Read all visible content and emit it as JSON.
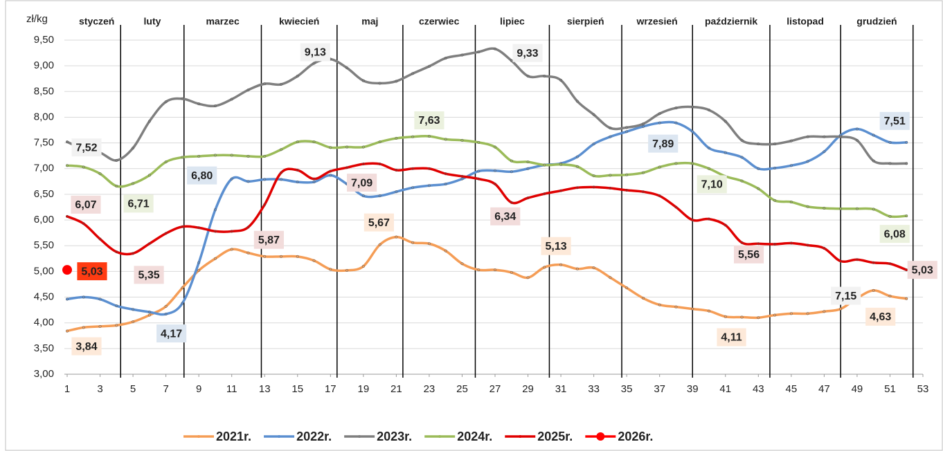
{
  "chart_data": {
    "type": "line",
    "y_label": "zł/kg",
    "months": [
      "styczeń",
      "luty",
      "marzec",
      "kwiecień",
      "maj",
      "czerwiec",
      "lipiec",
      "sierpień",
      "wrzesień",
      "październik",
      "listopad",
      "grudzień"
    ],
    "x": [
      1,
      2,
      3,
      4,
      5,
      6,
      7,
      8,
      9,
      10,
      11,
      12,
      13,
      14,
      15,
      16,
      17,
      18,
      19,
      20,
      21,
      22,
      23,
      24,
      25,
      26,
      27,
      28,
      29,
      30,
      31,
      32,
      33,
      34,
      35,
      36,
      37,
      38,
      39,
      40,
      41,
      42,
      43,
      44,
      45,
      46,
      47,
      48,
      49,
      50,
      51,
      52
    ],
    "xlim": [
      1,
      53
    ],
    "xticks": [
      1,
      3,
      5,
      7,
      9,
      11,
      13,
      15,
      17,
      19,
      21,
      23,
      25,
      27,
      29,
      31,
      33,
      35,
      37,
      39,
      41,
      43,
      45,
      47,
      49,
      51,
      53
    ],
    "ylim": [
      3,
      9.5
    ],
    "yticks": [
      {
        "value": 3,
        "label": "3,00"
      },
      {
        "value": 3.5,
        "label": "3,50"
      },
      {
        "value": 4,
        "label": "4,00"
      },
      {
        "value": 4.5,
        "label": "4,50"
      },
      {
        "value": 5,
        "label": "5,00"
      },
      {
        "value": 5.5,
        "label": "5,50"
      },
      {
        "value": 6,
        "label": "6,00"
      },
      {
        "value": 6.5,
        "label": "6,50"
      },
      {
        "value": 7,
        "label": "7,00"
      },
      {
        "value": 7.5,
        "label": "7,50"
      },
      {
        "value": 8,
        "label": "8,00"
      },
      {
        "value": 8.5,
        "label": "8,50"
      },
      {
        "value": 9,
        "label": "9,00"
      },
      {
        "value": 9.5,
        "label": "9,50"
      }
    ],
    "legend": "bottom",
    "series": [
      {
        "name": "2021r.",
        "color": "#f59d56",
        "label_fill": "#fde9d9",
        "values": [
          3.84,
          3.91,
          3.93,
          3.95,
          4.02,
          4.15,
          4.32,
          4.68,
          5.02,
          5.25,
          5.43,
          5.36,
          5.29,
          5.29,
          5.29,
          5.21,
          5.04,
          5.02,
          5.1,
          5.52,
          5.67,
          5.56,
          5.54,
          5.4,
          5.15,
          5.03,
          5.03,
          4.98,
          4.88,
          5.08,
          5.13,
          5.05,
          5.07,
          4.88,
          4.68,
          4.48,
          4.35,
          4.31,
          4.27,
          4.23,
          4.12,
          4.11,
          4.1,
          4.15,
          4.18,
          4.18,
          4.22,
          4.27,
          4.48,
          4.63,
          4.52,
          4.47
        ],
        "value_labels": [
          "3,84",
          null,
          null,
          null,
          null,
          null,
          null,
          null,
          null,
          null,
          null,
          null,
          null,
          null,
          null,
          null,
          null,
          null,
          null,
          null,
          "5,67",
          null,
          null,
          null,
          null,
          null,
          null,
          null,
          null,
          null,
          "5,13",
          null,
          null,
          null,
          null,
          null,
          null,
          null,
          null,
          null,
          null,
          "4,11",
          null,
          null,
          null,
          null,
          null,
          null,
          null,
          "4,63",
          null,
          null
        ]
      },
      {
        "name": "2022r.",
        "color": "#5b8fd0",
        "label_fill": "#dce6f1",
        "values": [
          4.46,
          4.5,
          4.46,
          4.33,
          4.26,
          4.21,
          4.17,
          4.38,
          5.17,
          6.2,
          6.8,
          6.75,
          6.79,
          6.79,
          6.74,
          6.74,
          6.87,
          6.7,
          6.47,
          6.47,
          6.55,
          6.63,
          6.67,
          6.7,
          6.8,
          6.95,
          6.96,
          6.94,
          7.0,
          7.07,
          7.1,
          7.23,
          7.48,
          7.62,
          7.72,
          7.82,
          7.89,
          7.89,
          7.72,
          7.4,
          7.31,
          7.22,
          7.0,
          7.01,
          7.06,
          7.14,
          7.33,
          7.65,
          7.77,
          7.65,
          7.51,
          7.51
        ],
        "value_labels": [
          null,
          null,
          null,
          null,
          null,
          null,
          "4,17",
          null,
          null,
          null,
          "6,80",
          null,
          null,
          null,
          null,
          null,
          null,
          null,
          null,
          null,
          null,
          null,
          null,
          null,
          null,
          null,
          null,
          null,
          null,
          null,
          null,
          null,
          null,
          null,
          null,
          null,
          "7,89",
          null,
          null,
          null,
          null,
          null,
          null,
          null,
          null,
          null,
          null,
          null,
          null,
          null,
          null,
          "7,51"
        ]
      },
      {
        "name": "2023r.",
        "color": "#7f7f7f",
        "label_fill": "#f2f2f2",
        "values": [
          7.52,
          7.38,
          7.31,
          7.16,
          7.4,
          7.92,
          8.3,
          8.36,
          8.26,
          8.22,
          8.35,
          8.53,
          8.65,
          8.64,
          8.8,
          9.05,
          9.13,
          8.96,
          8.71,
          8.66,
          8.7,
          8.85,
          8.99,
          9.15,
          9.21,
          9.27,
          9.33,
          9.1,
          8.8,
          8.8,
          8.72,
          8.31,
          8.05,
          7.79,
          7.8,
          7.87,
          8.07,
          8.18,
          8.2,
          8.14,
          7.92,
          7.55,
          7.48,
          7.48,
          7.54,
          7.62,
          7.62,
          7.62,
          7.55,
          7.15,
          7.1,
          7.1
        ],
        "value_labels": [
          "7,52",
          null,
          null,
          null,
          null,
          null,
          null,
          null,
          null,
          null,
          null,
          null,
          null,
          null,
          null,
          null,
          "9,13",
          null,
          null,
          null,
          null,
          null,
          null,
          null,
          null,
          null,
          "9,33",
          null,
          null,
          null,
          null,
          null,
          null,
          null,
          null,
          null,
          null,
          null,
          null,
          null,
          null,
          null,
          null,
          null,
          null,
          null,
          null,
          null,
          null,
          "7,15",
          null,
          null
        ]
      },
      {
        "name": "2024r.",
        "color": "#9bbb59",
        "label_fill": "#ebf1de",
        "values": [
          7.06,
          7.03,
          6.9,
          6.66,
          6.71,
          6.87,
          7.13,
          7.22,
          7.24,
          7.26,
          7.26,
          7.24,
          7.24,
          7.37,
          7.52,
          7.52,
          7.41,
          7.42,
          7.42,
          7.52,
          7.59,
          7.62,
          7.63,
          7.57,
          7.55,
          7.51,
          7.42,
          7.15,
          7.13,
          7.07,
          7.08,
          7.04,
          6.86,
          6.87,
          6.88,
          6.92,
          7.03,
          7.1,
          7.1,
          7.0,
          6.85,
          6.76,
          6.61,
          6.38,
          6.35,
          6.26,
          6.23,
          6.22,
          6.22,
          6.21,
          6.07,
          6.08
        ],
        "value_labels": [
          null,
          null,
          null,
          null,
          "6,71",
          null,
          null,
          null,
          null,
          null,
          null,
          null,
          null,
          null,
          null,
          null,
          null,
          null,
          null,
          null,
          null,
          null,
          "7,63",
          null,
          null,
          null,
          null,
          null,
          null,
          null,
          null,
          null,
          null,
          null,
          null,
          null,
          null,
          null,
          "7,10",
          null,
          null,
          null,
          null,
          null,
          null,
          null,
          null,
          null,
          null,
          null,
          null,
          "6,08"
        ]
      },
      {
        "name": "2025r.",
        "color": "#e00000",
        "label_fill": "#f2dcdb",
        "values": [
          6.07,
          5.93,
          5.63,
          5.38,
          5.35,
          5.54,
          5.74,
          5.87,
          5.85,
          5.78,
          5.78,
          5.86,
          6.3,
          6.92,
          6.97,
          6.8,
          6.95,
          7.02,
          7.09,
          7.09,
          6.97,
          7.0,
          7.0,
          6.9,
          6.85,
          6.8,
          6.7,
          6.34,
          6.43,
          6.51,
          6.57,
          6.63,
          6.64,
          6.62,
          6.58,
          6.55,
          6.47,
          6.25,
          6.0,
          6.02,
          5.9,
          5.56,
          5.54,
          5.53,
          5.55,
          5.51,
          5.45,
          5.2,
          5.23,
          5.17,
          5.15,
          5.03
        ],
        "value_labels": [
          "6,07",
          null,
          null,
          null,
          "5,35",
          null,
          null,
          "5,87",
          null,
          null,
          null,
          null,
          null,
          null,
          null,
          null,
          null,
          null,
          null,
          "7,09",
          null,
          null,
          null,
          null,
          null,
          null,
          null,
          "6,34",
          null,
          null,
          null,
          null,
          null,
          null,
          null,
          null,
          null,
          null,
          null,
          null,
          null,
          "5,56",
          null,
          null,
          null,
          null,
          null,
          null,
          null,
          null,
          null,
          "5,03"
        ]
      },
      {
        "name": "2026r.",
        "color": "#ff0000",
        "label_fill": "#ff3b12",
        "marker": "circle",
        "values": [
          5.03,
          null,
          null,
          null,
          null,
          null,
          null,
          null,
          null,
          null,
          null,
          null,
          null,
          null,
          null,
          null,
          null,
          null,
          null,
          null,
          null,
          null,
          null,
          null,
          null,
          null,
          null,
          null,
          null,
          null,
          null,
          null,
          null,
          null,
          null,
          null,
          null,
          null,
          null,
          null,
          null,
          null,
          null,
          null,
          null,
          null,
          null,
          null,
          null,
          null,
          null,
          null
        ],
        "value_labels": [
          "5,03",
          null,
          null,
          null,
          null,
          null,
          null,
          null,
          null,
          null,
          null,
          null,
          null,
          null,
          null,
          null,
          null,
          null,
          null,
          null,
          null,
          null,
          null,
          null,
          null,
          null,
          null,
          null,
          null,
          null,
          null,
          null,
          null,
          null,
          null,
          null,
          null,
          null,
          null,
          null,
          null,
          null,
          null,
          null,
          null,
          null,
          null,
          null,
          null,
          null,
          null,
          null
        ]
      }
    ]
  }
}
